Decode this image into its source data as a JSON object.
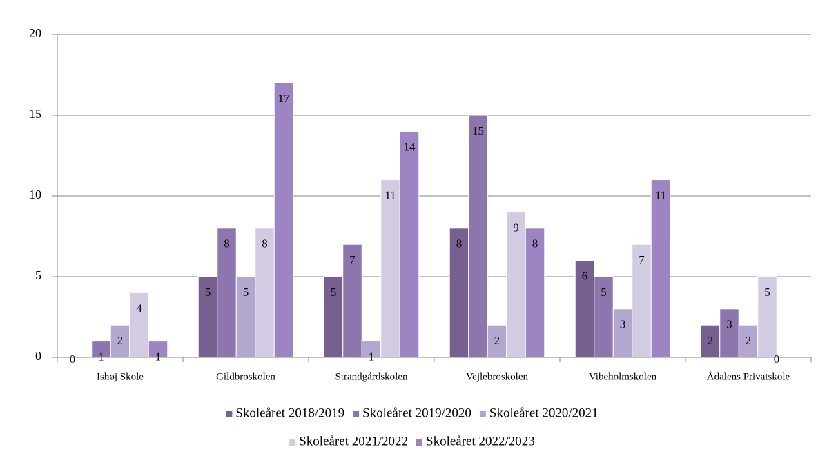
{
  "chart_data": {
    "type": "bar",
    "categories": [
      "Ishøj Skole",
      "Gildbroskolen",
      "Strandgårdskolen",
      "Vejlebroskolen",
      "Vibeholmskolen",
      "Ådalens Privatskole"
    ],
    "series": [
      {
        "name": "Skoleåret 2018/2019",
        "color": "#76608f",
        "values": [
          0,
          5,
          5,
          8,
          6,
          2
        ]
      },
      {
        "name": "Skoleåret 2019/2020",
        "color": "#8c76ad",
        "values": [
          1,
          8,
          7,
          15,
          5,
          3
        ]
      },
      {
        "name": "Skoleåret 2020/2021",
        "color": "#b4a7cf",
        "values": [
          2,
          5,
          1,
          2,
          3,
          2
        ]
      },
      {
        "name": "Skoleåret 2021/2022",
        "color": "#d2cbe2",
        "values": [
          4,
          8,
          11,
          9,
          7,
          5
        ]
      },
      {
        "name": "Skoleåret 2022/2023",
        "color": "#9d85c4",
        "values": [
          1,
          17,
          14,
          8,
          11,
          0
        ]
      }
    ],
    "ylim": [
      0,
      20
    ],
    "yticks": [
      0,
      5,
      10,
      15,
      20
    ],
    "grid": true,
    "legend": "bottom"
  }
}
